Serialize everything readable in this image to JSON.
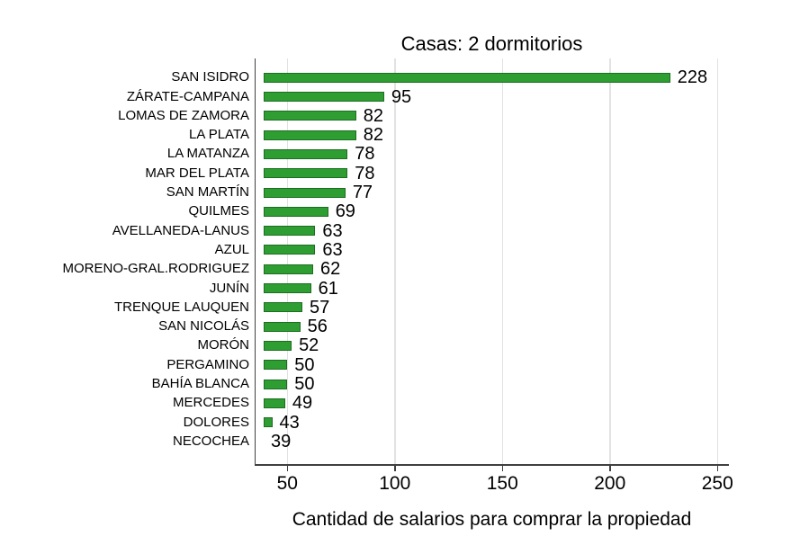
{
  "chart_data": {
    "type": "bar",
    "orientation": "horizontal",
    "title": "Casas: 2 dormitorios",
    "xlabel": "Cantidad de salarios para comprar la propiedad",
    "categories": [
      "SAN ISIDRO",
      "ZÁRATE-CAMPANA",
      "LOMAS DE ZAMORA",
      "LA PLATA",
      "LA MATANZA",
      "MAR DEL PLATA",
      "SAN MARTÍN",
      "QUILMES",
      "AVELLANEDA-LANUS",
      "AZUL",
      "MORENO-GRAL.RODRIGUEZ",
      "JUNÍN",
      "TRENQUE LAUQUEN",
      "SAN NICOLÁS",
      "MORÓN",
      "PERGAMINO",
      "BAHÍA BLANCA",
      "MERCEDES",
      "DOLORES",
      "NECOCHEA"
    ],
    "values": [
      228,
      95,
      82,
      82,
      78,
      78,
      77,
      69,
      63,
      63,
      62,
      61,
      57,
      56,
      52,
      50,
      50,
      49,
      43,
      39
    ],
    "value_labels_shown": true,
    "x_ticks": [
      50,
      100,
      150,
      200,
      250
    ],
    "x_min": 39,
    "x_max": 255,
    "grid": true,
    "legend": "none",
    "colors": {
      "bar_fill": "#2e9d32",
      "bar_border": "#1c6e20",
      "gridline": "#e2e2e2",
      "axis": "#404040",
      "text": "#000000",
      "background": "#ffffff"
    }
  }
}
